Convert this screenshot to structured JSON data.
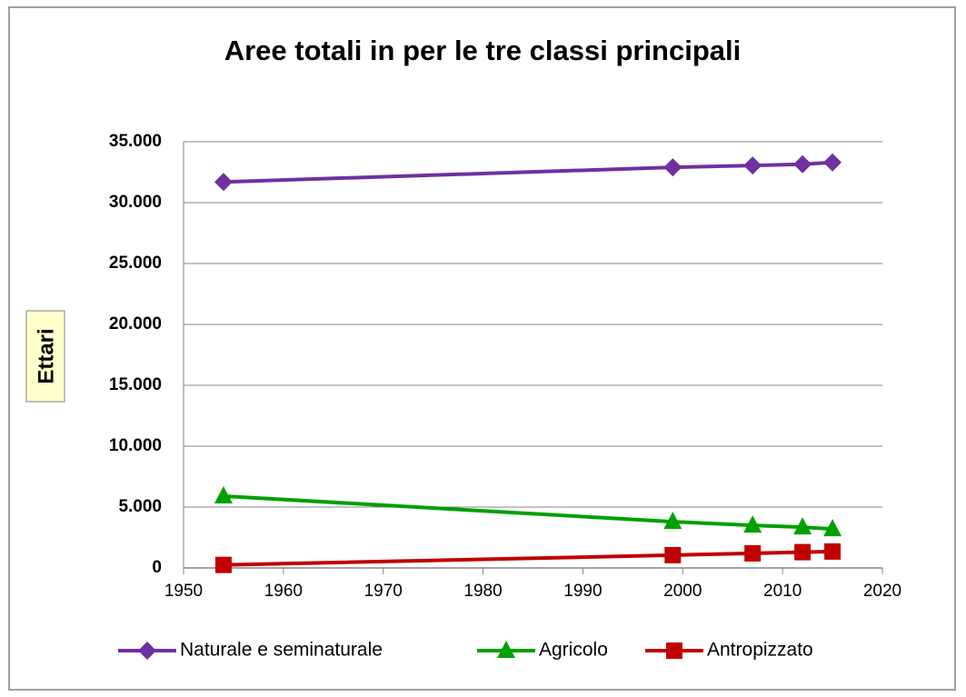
{
  "chart_data": {
    "type": "line",
    "title": "Aree totali in per le tre classi principali",
    "y_label": "Ettari",
    "x": [
      1954,
      1999,
      2007,
      2012,
      2015
    ],
    "series": [
      {
        "name": "Naturale e seminaturale",
        "color": "#7030a0",
        "marker": "diamond",
        "values": [
          31700,
          32900,
          33050,
          33150,
          33300
        ]
      },
      {
        "name": "Agricolo",
        "color": "#00a000",
        "marker": "triangle",
        "values": [
          5900,
          3800,
          3500,
          3350,
          3200
        ]
      },
      {
        "name": "Antropizzato",
        "color": "#c00000",
        "marker": "square",
        "values": [
          250,
          1050,
          1200,
          1300,
          1350
        ]
      }
    ],
    "xlim": [
      1950,
      2020
    ],
    "xticks": [
      1950,
      1960,
      1970,
      1980,
      1990,
      2000,
      2010,
      2020
    ],
    "ylim": [
      0,
      35000
    ],
    "yticks": [
      0,
      {
        "value": 5000,
        "label": "5.000"
      },
      {
        "value": 10000,
        "label": "10.000"
      },
      {
        "value": 15000,
        "label": "15.000"
      },
      {
        "value": 20000,
        "label": "20.000"
      },
      {
        "value": 25000,
        "label": "25.000"
      },
      {
        "value": 30000,
        "label": "30.000"
      },
      {
        "value": 35000,
        "label": "35.000"
      }
    ],
    "grid": true,
    "legend": "bottom"
  }
}
